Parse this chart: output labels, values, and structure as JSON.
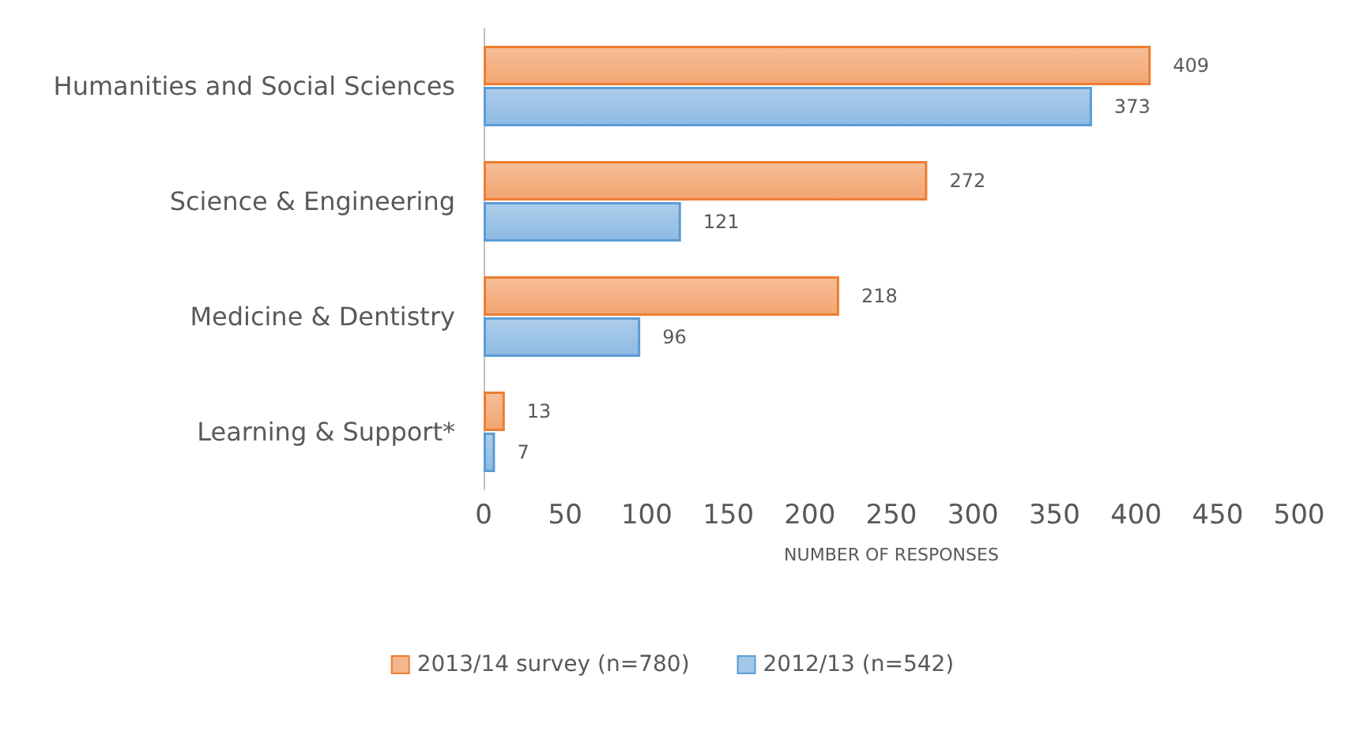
{
  "chart_data": {
    "type": "bar",
    "orientation": "horizontal",
    "categories": [
      "Humanities and Social Sciences",
      "Science & Engineering",
      "Medicine & Dentistry",
      "Learning & Support*"
    ],
    "series": [
      {
        "name": "2013/14 survey (n=780)",
        "color": "#ed7d31",
        "values": [
          409,
          272,
          218,
          13
        ]
      },
      {
        "name": "2012/13 (n=542)",
        "color": "#5b9bd5",
        "values": [
          373,
          121,
          96,
          7
        ]
      }
    ],
    "xlabel": "NUMBER OF RESPONSES",
    "xlim": [
      0,
      500
    ],
    "xticks": [
      0,
      50,
      100,
      150,
      200,
      250,
      300,
      350,
      400,
      450,
      500
    ],
    "grid": false,
    "legend": "bottom",
    "data_labels": true
  }
}
